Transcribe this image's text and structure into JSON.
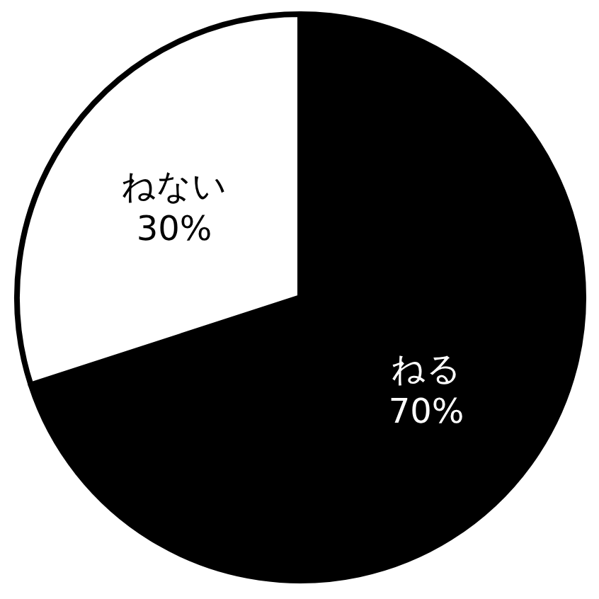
{
  "chart_data": {
    "type": "pie",
    "categories": [
      "ねる",
      "ねない"
    ],
    "values": [
      70,
      30
    ],
    "colors": [
      "#000000",
      "#ffffff"
    ],
    "value_labels": [
      "70%",
      "30%"
    ]
  }
}
